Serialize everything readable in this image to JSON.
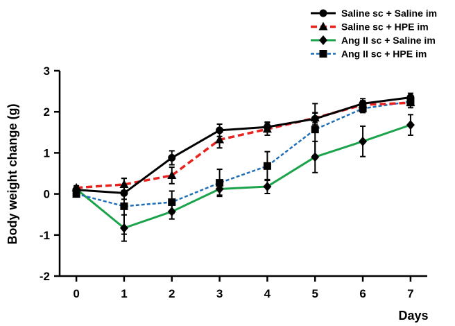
{
  "chart_data": {
    "type": "line",
    "xlabel": "Days",
    "ylabel": "Body weight change (g)",
    "x": [
      0,
      1,
      2,
      3,
      4,
      5,
      6,
      7
    ],
    "xlim": [
      -0.35,
      7.35
    ],
    "ylim": [
      -2,
      3
    ],
    "yticks": [
      -2,
      -1,
      0,
      1,
      2,
      3
    ],
    "legend_position": "top-right",
    "series": [
      {
        "name": "Saline sc + Saline im",
        "color": "#000000",
        "dash": "solid",
        "marker": "circle",
        "values": [
          0.1,
          0.02,
          0.88,
          1.55,
          1.63,
          1.83,
          2.2,
          2.35
        ],
        "errors": [
          0.05,
          0.15,
          0.17,
          0.15,
          0.12,
          0.15,
          0.12,
          0.1
        ]
      },
      {
        "name": "Saline sc + HPE im",
        "color": "#e8231f",
        "dash": "dashed",
        "marker": "triangle",
        "values": [
          0.15,
          0.23,
          0.45,
          1.32,
          1.58,
          1.85,
          2.17,
          2.22
        ],
        "errors": [
          0.05,
          0.15,
          0.2,
          0.2,
          0.15,
          0.12,
          0.1,
          0.12
        ]
      },
      {
        "name": "Ang II sc + Saline im",
        "color": "#1aa34a",
        "dash": "solid",
        "marker": "diamond",
        "values": [
          0.12,
          -0.83,
          -0.43,
          0.12,
          0.18,
          0.9,
          1.28,
          1.68
        ],
        "errors": [
          0.05,
          0.32,
          0.18,
          0.15,
          0.17,
          0.38,
          0.37,
          0.25
        ]
      },
      {
        "name": "Ang II sc + HPE im",
        "color": "#1f6fb8",
        "dash": "dotted",
        "marker": "square",
        "values": [
          0.0,
          -0.3,
          -0.2,
          0.27,
          0.68,
          1.57,
          2.08,
          2.25
        ],
        "errors": [
          0.04,
          0.68,
          0.27,
          0.33,
          0.35,
          0.63,
          0.1,
          0.1
        ]
      }
    ]
  }
}
